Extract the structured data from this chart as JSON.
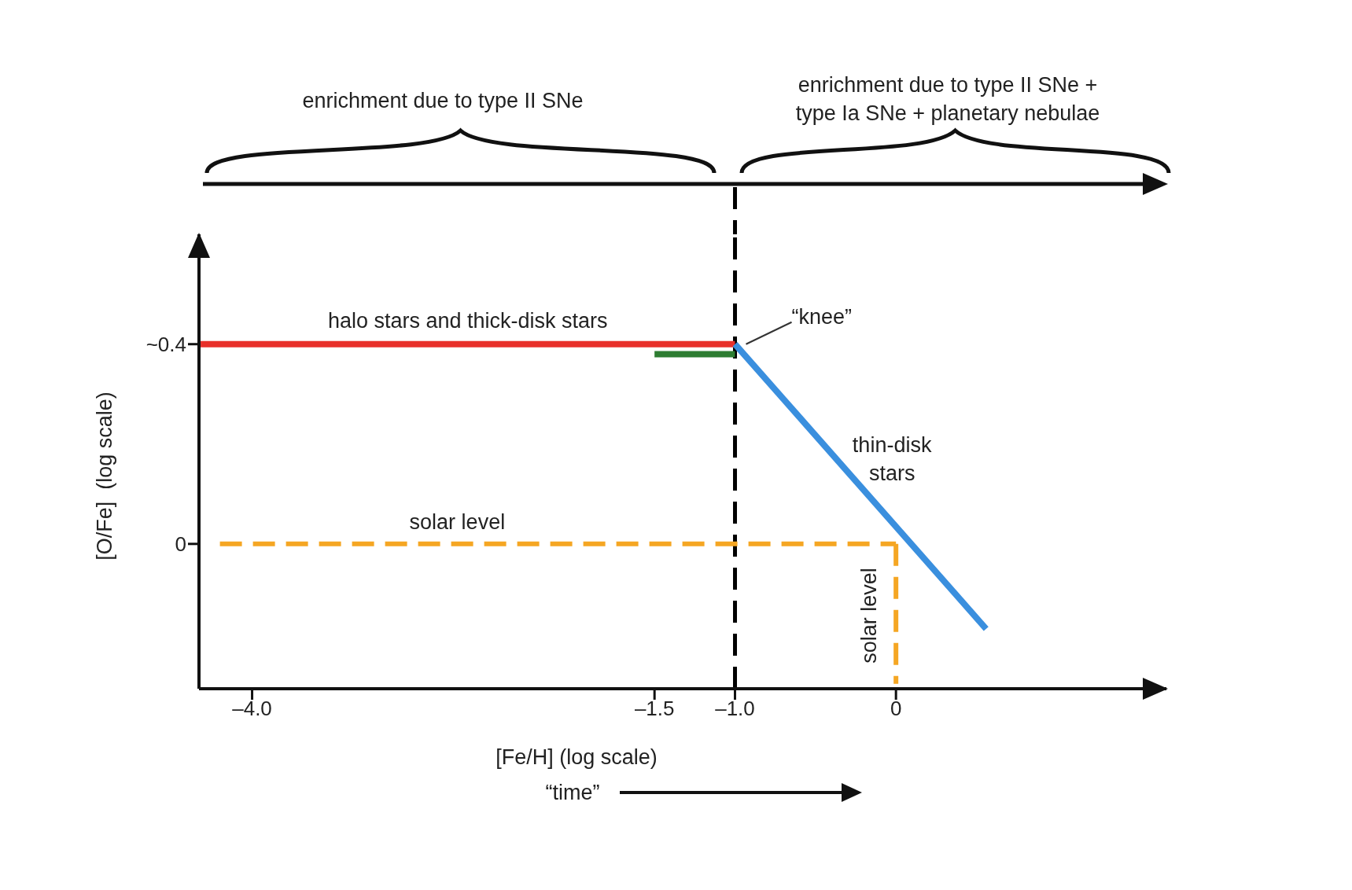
{
  "chart_data": {
    "type": "line",
    "xlabel": "[Fe/H] (log scale)",
    "ylabel": "[O/Fe]  (log scale)",
    "xlim": [
      -4.33,
      1.68
    ],
    "ylim": [
      -0.29,
      0.62
    ],
    "xticks": [
      {
        "value": -4,
        "label": "–4.0"
      },
      {
        "value": -1.5,
        "label": "–1.5"
      },
      {
        "value": -1,
        "label": "–1.0"
      },
      0
    ],
    "yticks": [
      {
        "value": 0.4,
        "label": "~0.4"
      },
      0
    ],
    "series": [
      {
        "name": "halo stars and thick-disk stars",
        "color": "#e8302a",
        "x": [
          -4.32,
          -1.0
        ],
        "values": [
          0.4,
          0.4
        ]
      },
      {
        "color": "#2e7d32",
        "x": [
          -1.5,
          -1.0
        ],
        "values": [
          0.38,
          0.38
        ]
      },
      {
        "name": "thin-disk stars",
        "color": "#3a8fde",
        "x": [
          -1.0,
          0.56
        ],
        "values": [
          0.4,
          -0.17
        ]
      },
      {
        "name": "solar level",
        "color": "#f5a623",
        "line_style": "dashed",
        "x": [
          -4.2,
          0
        ],
        "values": [
          0,
          0
        ]
      },
      {
        "name": "solar level",
        "color": "#f5a623",
        "line_style": "dashed",
        "x": [
          0,
          0
        ],
        "values": [
          0,
          -0.28
        ]
      }
    ],
    "ref_lines": [
      {
        "axis": "x",
        "value": -1.0,
        "color": "#000000",
        "line_style": "dashed"
      }
    ],
    "annotations": [
      "enrichment due to type II SNe",
      "enrichment due to type II SNe + type Ia SNe + planetary nebulae",
      {
        "text": "“knee”",
        "x": -1.0,
        "y": 0.4
      },
      "“time”"
    ]
  }
}
